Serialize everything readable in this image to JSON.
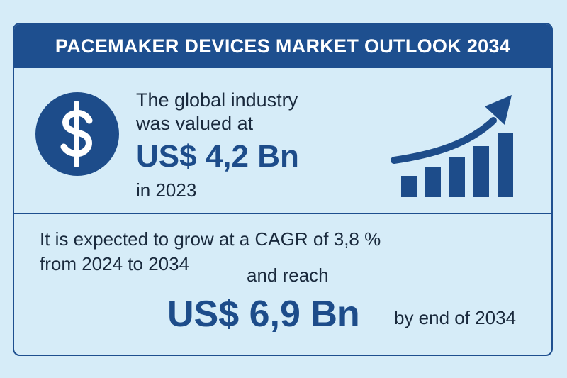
{
  "header": {
    "title": "PACEMAKER DEVICES MARKET OUTLOOK 2034"
  },
  "current": {
    "line1": "The global industry",
    "line2": "was valued at",
    "value": "US$ 4,2 Bn",
    "year": "in 2023"
  },
  "forecast": {
    "line1": "It is expected to grow at a CAGR of 3,8 %",
    "line2": "from 2024 to 2034",
    "line3": "and reach",
    "value": "US$ 6,9 Bn",
    "suffix": "by end of 2034"
  },
  "icons": {
    "currency": "dollar-icon",
    "growth": "growth-chart-icon"
  },
  "colors": {
    "background": "#d6ecf8",
    "primary": "#1d4c8a",
    "header": "#1e4f8f",
    "text": "#1a2a3d"
  }
}
